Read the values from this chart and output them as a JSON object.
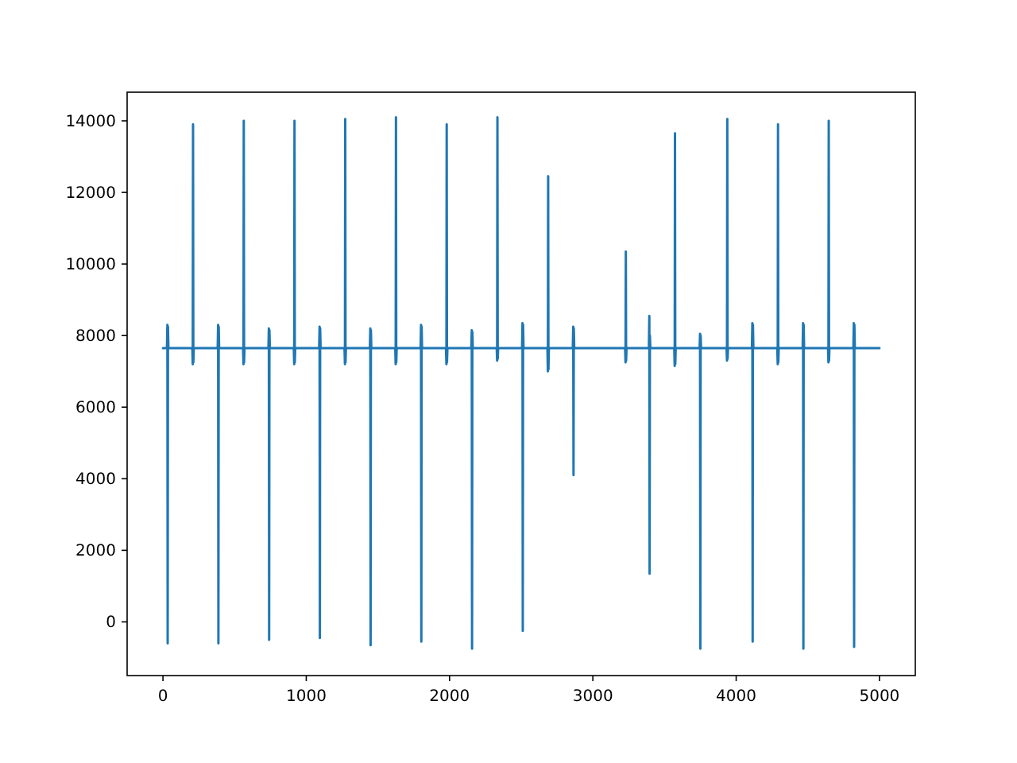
{
  "chart_data": {
    "type": "line",
    "xlim": [
      -250,
      5250
    ],
    "ylim": [
      -1500,
      14800
    ],
    "xticks": [
      0,
      1000,
      2000,
      3000,
      4000,
      5000
    ],
    "yticks": [
      0,
      2000,
      4000,
      6000,
      8000,
      10000,
      12000,
      14000
    ],
    "grid": false,
    "marker": "none",
    "line_style": "solid",
    "series": [
      {
        "color": "#1f77b4",
        "x": [
          0,
          28,
          31,
          33,
          35,
          38,
          205,
          208,
          210,
          212,
          215,
          382,
          385,
          387,
          389,
          392,
          559,
          562,
          564,
          566,
          569,
          736,
          739,
          741,
          743,
          746,
          913,
          916,
          918,
          920,
          923,
          1090,
          1093,
          1095,
          1097,
          1100,
          1267,
          1270,
          1272,
          1274,
          1277,
          1444,
          1447,
          1449,
          1451,
          1454,
          1621,
          1624,
          1626,
          1628,
          1631,
          1798,
          1801,
          1803,
          1805,
          1808,
          1975,
          1978,
          1980,
          1982,
          1985,
          2152,
          2155,
          2157,
          2159,
          2162,
          2329,
          2332,
          2334,
          2336,
          2339,
          2506,
          2509,
          2511,
          2513,
          2516,
          2683,
          2686,
          2688,
          2690,
          2693,
          2860,
          2863,
          2865,
          2867,
          2870,
          3225,
          3228,
          3230,
          3232,
          3235,
          3391,
          3394,
          3396,
          3398,
          3401,
          3568,
          3571,
          3573,
          3575,
          3578,
          3745,
          3748,
          3750,
          3752,
          3755,
          3933,
          3936,
          3938,
          3940,
          3943,
          4110,
          4113,
          4115,
          4117,
          4120,
          4287,
          4290,
          4292,
          4294,
          4297,
          4464,
          4467,
          4469,
          4471,
          4474,
          4641,
          4644,
          4646,
          4648,
          4651,
          4818,
          4821,
          4823,
          4825,
          4828,
          5000
        ],
        "values": [
          7650,
          7650,
          8300,
          -600,
          8250,
          7650,
          7650,
          7200,
          13900,
          7250,
          7650,
          7650,
          8300,
          -600,
          8250,
          7650,
          7650,
          7200,
          14000,
          7250,
          7650,
          7650,
          8200,
          -500,
          8150,
          7650,
          7650,
          7200,
          14000,
          7250,
          7650,
          7650,
          8250,
          -450,
          8200,
          7650,
          7650,
          7200,
          14050,
          7250,
          7650,
          7650,
          8200,
          -650,
          8150,
          7650,
          7650,
          7200,
          14100,
          7250,
          7650,
          7650,
          8300,
          -550,
          8250,
          7650,
          7650,
          7200,
          13900,
          7250,
          7650,
          7650,
          8150,
          -750,
          8100,
          7650,
          7650,
          7300,
          14100,
          7350,
          7650,
          7650,
          8350,
          -250,
          8300,
          7650,
          7650,
          7000,
          12450,
          7050,
          7650,
          7650,
          8250,
          4100,
          8200,
          7650,
          7650,
          7250,
          10350,
          7300,
          7650,
          7650,
          8550,
          1350,
          8000,
          7650,
          7650,
          7150,
          13650,
          7200,
          7650,
          7650,
          8050,
          -750,
          8000,
          7650,
          7650,
          7300,
          14050,
          7350,
          7650,
          7650,
          8350,
          -550,
          8300,
          7650,
          7650,
          7200,
          13900,
          7250,
          7650,
          7650,
          8350,
          -750,
          8300,
          7650,
          7650,
          7250,
          14000,
          7300,
          7650,
          7650,
          8350,
          -700,
          8300,
          7650,
          7650
        ]
      }
    ]
  }
}
